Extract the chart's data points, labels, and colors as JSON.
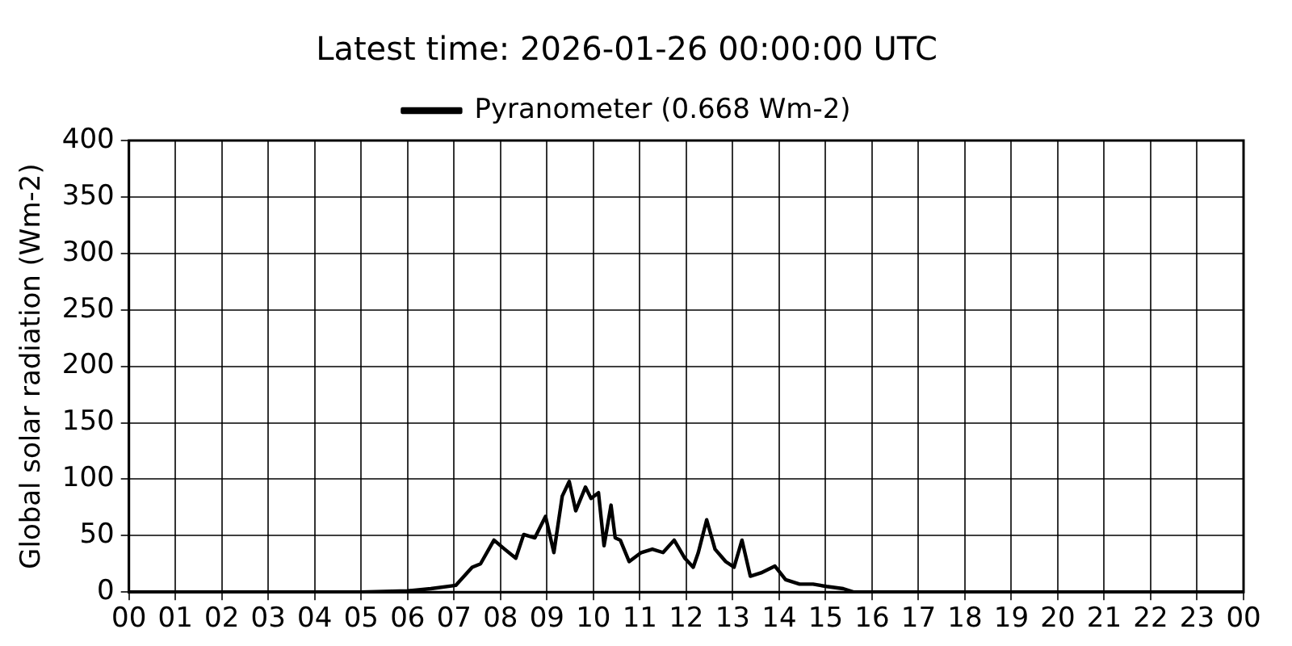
{
  "chart_data": {
    "type": "line",
    "title": "Latest time: 2026-01-26 00:00:00 UTC",
    "ylabel": "Global solar radiation (Wm-2)",
    "legend": "top",
    "grid": true,
    "marker": "none",
    "line_style": "solid",
    "xlim": [
      0,
      24
    ],
    "ylim": [
      0,
      400
    ],
    "xticks": [
      {
        "value": 0,
        "label": "00"
      },
      {
        "value": 1,
        "label": "01"
      },
      {
        "value": 2,
        "label": "02"
      },
      {
        "value": 3,
        "label": "03"
      },
      {
        "value": 4,
        "label": "04"
      },
      {
        "value": 5,
        "label": "05"
      },
      {
        "value": 6,
        "label": "06"
      },
      {
        "value": 7,
        "label": "07"
      },
      {
        "value": 8,
        "label": "08"
      },
      {
        "value": 9,
        "label": "09"
      },
      {
        "value": 10,
        "label": "10"
      },
      {
        "value": 11,
        "label": "11"
      },
      {
        "value": 12,
        "label": "12"
      },
      {
        "value": 13,
        "label": "13"
      },
      {
        "value": 14,
        "label": "14"
      },
      {
        "value": 15,
        "label": "15"
      },
      {
        "value": 16,
        "label": "16"
      },
      {
        "value": 17,
        "label": "17"
      },
      {
        "value": 18,
        "label": "18"
      },
      {
        "value": 19,
        "label": "19"
      },
      {
        "value": 20,
        "label": "20"
      },
      {
        "value": 21,
        "label": "21"
      },
      {
        "value": 22,
        "label": "22"
      },
      {
        "value": 23,
        "label": "23"
      },
      {
        "value": 24,
        "label": "00"
      }
    ],
    "yticks": [
      0,
      50,
      100,
      150,
      200,
      250,
      300,
      350,
      400
    ],
    "series": [
      {
        "name": "Pyranometer (0.668 Wm-2)",
        "color": "#000000",
        "x": [
          0,
          5,
          6,
          6.5,
          7.04,
          7.39,
          7.57,
          7.86,
          8.09,
          8.33,
          8.5,
          8.74,
          8.97,
          9.15,
          9.33,
          9.48,
          9.62,
          9.83,
          9.95,
          10.11,
          10.23,
          10.38,
          10.47,
          10.58,
          10.77,
          11.03,
          11.27,
          11.5,
          11.74,
          11.97,
          12.15,
          12.26,
          12.44,
          12.62,
          12.85,
          13.03,
          13.2,
          13.38,
          13.61,
          13.91,
          14.14,
          14.44,
          14.73,
          15.02,
          15.38,
          15.6,
          16,
          24
        ],
        "values": [
          0,
          0,
          1,
          3,
          6,
          22,
          25,
          46,
          38,
          30,
          51,
          48,
          67,
          35,
          85,
          98,
          72,
          93,
          83,
          88,
          41,
          77,
          48,
          46,
          27,
          35,
          38,
          35,
          46,
          30,
          22,
          35,
          64,
          38,
          27,
          22,
          46,
          14,
          17,
          23,
          11,
          7,
          7,
          5,
          3,
          0,
          0,
          0
        ]
      }
    ]
  }
}
